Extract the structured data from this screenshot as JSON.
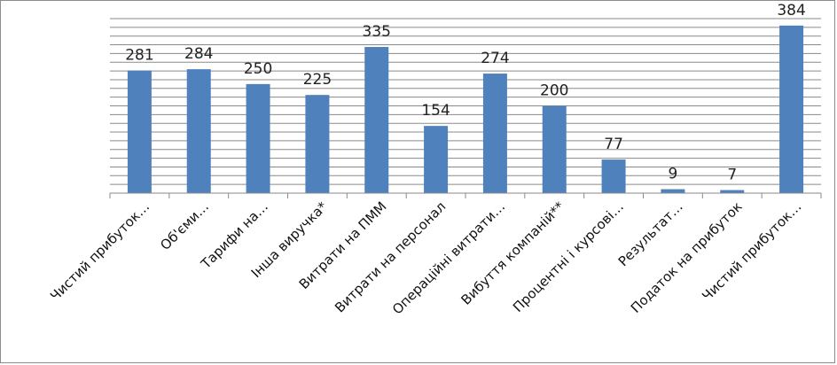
{
  "chart_data": {
    "type": "bar",
    "title": "",
    "xlabel": "",
    "ylabel": "",
    "categories": [
      "Чистий прибуток…",
      "Об'єми…",
      "Тарифи на…",
      "Інша виручка*",
      "Витрати на ПММ",
      "Витрати на персонал",
      "Операційні витрати…",
      "Вибуття компаній**",
      "Процентні і курсові…",
      "Результат…",
      "Податок на прибуток",
      "Чистий прибуток…"
    ],
    "values": [
      281,
      284,
      250,
      225,
      335,
      154,
      274,
      200,
      77,
      9,
      7,
      384
    ],
    "data_labels": [
      "281",
      "284",
      "250",
      "225",
      "335",
      "154",
      "274",
      "200",
      "77",
      "9",
      "7",
      "384"
    ],
    "ylim": [
      0,
      400
    ],
    "grid": true,
    "legend": "none",
    "bar_color": "#4f81bd"
  }
}
